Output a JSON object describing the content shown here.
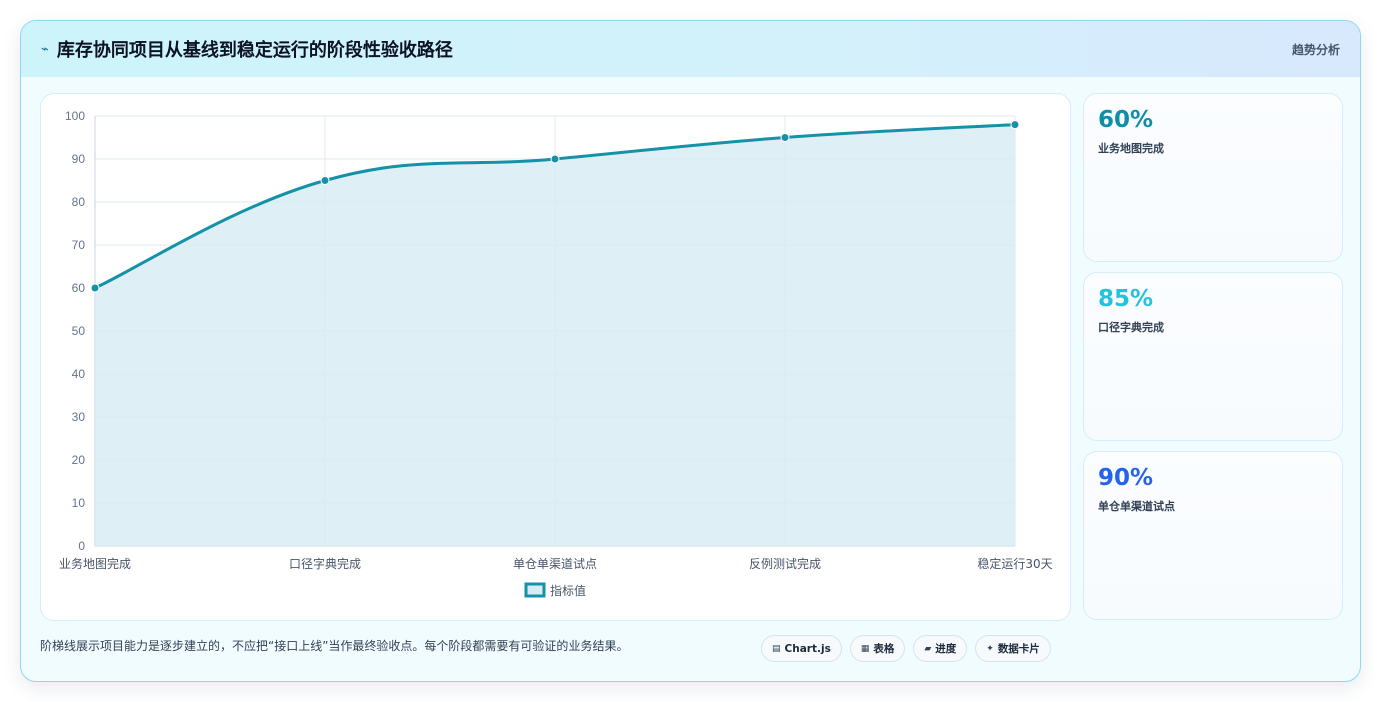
{
  "header": {
    "icon": "chart-line-icon",
    "title": "库存协同项目从基线到稳定运行的阶段性验收路径",
    "tag": "趋势分析"
  },
  "chart_data": {
    "type": "line",
    "categories": [
      "业务地图完成",
      "口径字典完成",
      "单仓单渠道试点",
      "反例测试完成",
      "稳定运行30天"
    ],
    "series": [
      {
        "name": "指标值",
        "values": [
          60,
          85,
          90,
          95,
          98
        ]
      }
    ],
    "ylim": [
      0,
      100
    ],
    "yticks": [
      0,
      10,
      20,
      30,
      40,
      50,
      60,
      70,
      80,
      90,
      100
    ],
    "grid": true,
    "legend": "bottom",
    "fill": true,
    "color": "#1591a8",
    "fill_color": "#d8ecf3"
  },
  "stats": [
    {
      "value": "60%",
      "label": "业务地图完成",
      "color": "#0e8fa5"
    },
    {
      "value": "85%",
      "label": "口径字典完成",
      "color": "#22c3dc"
    },
    {
      "value": "90%",
      "label": "单仓单渠道试点",
      "color": "#2563eb"
    }
  ],
  "footer": {
    "note": "阶梯线展示项目能力是逐步建立的，不应把“接口上线”当作最终验收点。每个阶段都需要有可验证的业务结果。",
    "chips": [
      {
        "icon": "chart-icon",
        "glyph": "▤",
        "label": "Chart.js"
      },
      {
        "icon": "table-icon",
        "glyph": "▦",
        "label": "表格"
      },
      {
        "icon": "progress-icon",
        "glyph": "▰",
        "label": "进度"
      },
      {
        "icon": "data-card-icon",
        "glyph": "✦",
        "label": "数据卡片"
      }
    ]
  }
}
